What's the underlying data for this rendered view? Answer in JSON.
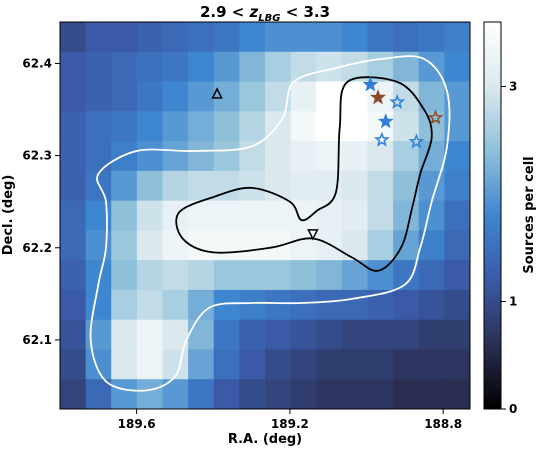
{
  "chart_data": {
    "type": "heatmap",
    "title": {
      "prefix": "2.9 < ",
      "var": "z",
      "sub": "LBG",
      "suffix": " < 3.3"
    },
    "xlabel": "R.A. (deg)",
    "ylabel": "Decl. (deg)",
    "xlim": [
      189.8,
      188.73
    ],
    "ylim": [
      62.025,
      62.445
    ],
    "x_ticks": [
      {
        "value": 189.6,
        "label": "189.6"
      },
      {
        "value": 189.2,
        "label": "189.2"
      },
      {
        "value": 188.8,
        "label": "188.8"
      }
    ],
    "y_ticks": [
      {
        "value": 62.1,
        "label": "62.1"
      },
      {
        "value": 62.2,
        "label": "62.2"
      },
      {
        "value": 62.3,
        "label": "62.3"
      },
      {
        "value": 62.4,
        "label": "62.4"
      }
    ],
    "colorbar": {
      "label": "Sources per cell",
      "range": [
        0,
        3.6
      ],
      "ticks": [
        {
          "value": 0,
          "label": "0"
        },
        {
          "value": 1,
          "label": "1"
        },
        {
          "value": 3,
          "label": "3"
        }
      ],
      "colors": [
        "#000000",
        "#2a2f52",
        "#3a5aa8",
        "#3f86d0",
        "#8ec0da",
        "#dbe9ee",
        "#ffffff"
      ]
    },
    "grid": false,
    "cell_values": [
      [
        1.0,
        1.2,
        1.2,
        1.3,
        1.4,
        1.5,
        1.6,
        1.8,
        1.9,
        1.9,
        1.9,
        1.8,
        1.6,
        1.5,
        1.6,
        1.7
      ],
      [
        1.2,
        1.3,
        1.4,
        1.5,
        1.6,
        1.8,
        2.0,
        2.3,
        2.6,
        2.8,
        2.9,
        2.8,
        2.6,
        2.3,
        2.0,
        1.8
      ],
      [
        1.2,
        1.3,
        1.4,
        1.6,
        1.8,
        2.0,
        2.2,
        2.5,
        2.8,
        3.2,
        3.6,
        3.6,
        3.3,
        2.8,
        2.3,
        2.0
      ],
      [
        1.3,
        1.5,
        1.6,
        1.8,
        2.0,
        2.2,
        2.4,
        2.7,
        3.0,
        3.4,
        3.6,
        3.6,
        3.4,
        2.9,
        2.4,
        2.0
      ],
      [
        1.3,
        1.5,
        1.7,
        1.9,
        2.1,
        2.3,
        2.5,
        2.8,
        3.0,
        3.2,
        3.3,
        3.2,
        3.0,
        2.6,
        2.2,
        1.8
      ],
      [
        1.3,
        1.6,
        2.0,
        2.4,
        2.7,
        2.8,
        2.8,
        2.9,
        3.0,
        3.1,
        3.1,
        3.0,
        2.8,
        2.4,
        2.0,
        1.7
      ],
      [
        1.4,
        1.8,
        2.4,
        2.9,
        3.2,
        3.3,
        3.3,
        3.3,
        3.3,
        3.3,
        3.2,
        3.1,
        2.8,
        2.3,
        1.9,
        1.5
      ],
      [
        1.4,
        1.9,
        2.5,
        3.0,
        3.3,
        3.4,
        3.4,
        3.4,
        3.4,
        3.3,
        3.2,
        3.0,
        2.6,
        2.1,
        1.7,
        1.4
      ],
      [
        1.3,
        1.8,
        2.4,
        2.7,
        2.8,
        2.7,
        2.5,
        2.5,
        2.5,
        2.4,
        2.3,
        2.1,
        1.9,
        1.6,
        1.4,
        1.2
      ],
      [
        1.2,
        1.8,
        2.6,
        2.8,
        2.6,
        2.2,
        1.8,
        1.7,
        1.6,
        1.5,
        1.4,
        1.4,
        1.3,
        1.2,
        1.1,
        1.0
      ],
      [
        1.1,
        2.0,
        3.0,
        3.3,
        3.0,
        2.3,
        1.6,
        1.3,
        1.2,
        1.1,
        1.0,
        0.9,
        0.9,
        0.9,
        0.8,
        0.8
      ],
      [
        1.0,
        1.9,
        3.0,
        3.3,
        2.9,
        2.1,
        1.5,
        1.2,
        1.0,
        0.9,
        0.8,
        0.8,
        0.8,
        0.7,
        0.7,
        0.7
      ],
      [
        0.9,
        1.4,
        2.0,
        2.2,
        2.0,
        1.6,
        1.2,
        1.0,
        0.9,
        0.8,
        0.7,
        0.7,
        0.7,
        0.6,
        0.6,
        0.6
      ]
    ],
    "contours": [
      {
        "level": "outer",
        "color": "#ffffff",
        "points": [
          [
            189.19,
            62.38
          ],
          [
            189.08,
            62.395
          ],
          [
            188.96,
            62.405
          ],
          [
            188.85,
            62.405
          ],
          [
            188.79,
            62.37
          ],
          [
            188.79,
            62.31
          ],
          [
            188.83,
            62.25
          ],
          [
            188.86,
            62.2
          ],
          [
            188.9,
            62.16
          ],
          [
            189.03,
            62.145
          ],
          [
            189.17,
            62.14
          ],
          [
            189.3,
            62.14
          ],
          [
            189.41,
            62.135
          ],
          [
            189.47,
            62.1
          ],
          [
            189.5,
            62.06
          ],
          [
            189.58,
            62.045
          ],
          [
            189.68,
            62.055
          ],
          [
            189.72,
            62.1
          ],
          [
            189.7,
            62.16
          ],
          [
            189.68,
            62.2
          ],
          [
            189.68,
            62.25
          ],
          [
            189.7,
            62.28
          ],
          [
            189.6,
            62.305
          ],
          [
            189.45,
            62.305
          ],
          [
            189.3,
            62.31
          ],
          [
            189.22,
            62.34
          ]
        ]
      },
      {
        "level": "inner",
        "color": "#000000",
        "points": [
          [
            189.49,
            62.238
          ],
          [
            189.4,
            62.255
          ],
          [
            189.3,
            62.265
          ],
          [
            189.2,
            62.25
          ],
          [
            189.17,
            62.23
          ],
          [
            189.13,
            62.24
          ],
          [
            189.08,
            62.26
          ],
          [
            189.07,
            62.33
          ],
          [
            189.05,
            62.38
          ],
          [
            188.92,
            62.38
          ],
          [
            188.85,
            62.35
          ],
          [
            188.83,
            62.32
          ],
          [
            188.86,
            62.28
          ],
          [
            188.88,
            62.245
          ],
          [
            188.91,
            62.2
          ],
          [
            188.97,
            62.175
          ],
          [
            189.04,
            62.19
          ],
          [
            189.14,
            62.21
          ],
          [
            189.25,
            62.2
          ],
          [
            189.4,
            62.195
          ],
          [
            189.48,
            62.21
          ]
        ]
      }
    ],
    "markers": [
      {
        "shape": "triangle-up",
        "ra": 189.39,
        "dec": 62.367,
        "color": "#000000",
        "fill": "none"
      },
      {
        "shape": "triangle-down",
        "ra": 189.14,
        "dec": 62.215,
        "color": "#000000",
        "fill": "none"
      },
      {
        "shape": "star",
        "ra": 188.99,
        "dec": 62.377,
        "color": "#2f7fd8",
        "fill": "#2f7fd8"
      },
      {
        "shape": "star",
        "ra": 188.97,
        "dec": 62.363,
        "color": "#8b4a2a",
        "fill": "#8b4a2a"
      },
      {
        "shape": "star",
        "ra": 188.92,
        "dec": 62.358,
        "color": "#2f7fd8",
        "fill": "none"
      },
      {
        "shape": "star",
        "ra": 188.95,
        "dec": 62.337,
        "color": "#2f7fd8",
        "fill": "#2f7fd8"
      },
      {
        "shape": "star",
        "ra": 188.96,
        "dec": 62.317,
        "color": "#2f7fd8",
        "fill": "none"
      },
      {
        "shape": "star",
        "ra": 188.87,
        "dec": 62.315,
        "color": "#2f7fd8",
        "fill": "none"
      },
      {
        "shape": "star",
        "ra": 188.82,
        "dec": 62.341,
        "color": "#8b4a2a",
        "fill": "none"
      }
    ]
  }
}
